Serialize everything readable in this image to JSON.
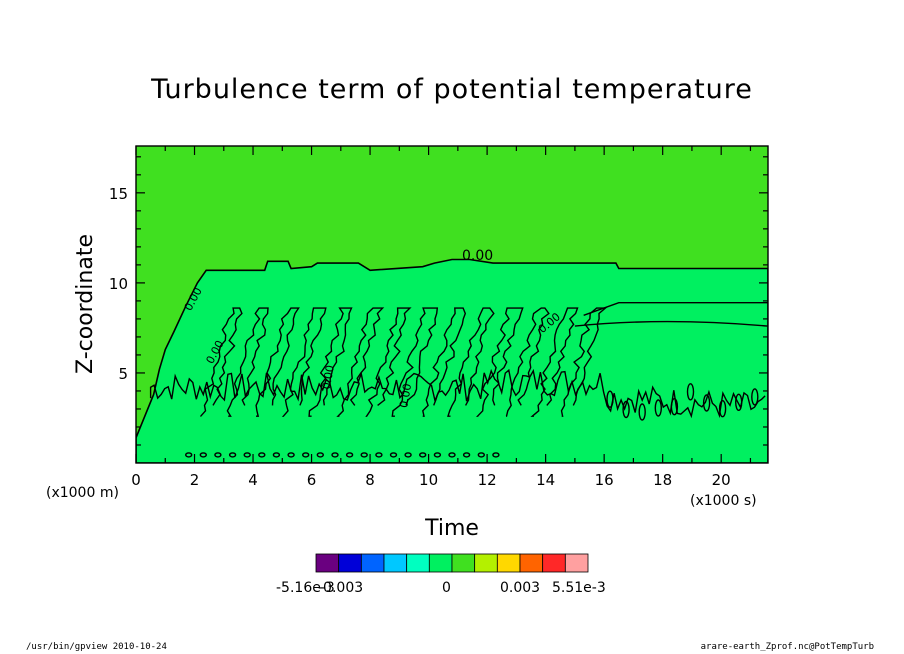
{
  "chart_data": {
    "type": "heatmap",
    "title": "Turbulence term of potential temperature",
    "xlabel": "Time",
    "ylabel": "Z-coordinate",
    "x_unit_label": "(x1000 s)",
    "y_unit_label": "(x1000 m)",
    "xlim": [
      0,
      21.6
    ],
    "ylim": [
      0,
      17.6
    ],
    "x_ticks": [
      0,
      2,
      4,
      6,
      8,
      10,
      12,
      14,
      16,
      18,
      20
    ],
    "y_ticks": [
      5,
      10,
      15
    ],
    "contour_label": "0.00",
    "contour_labels_small": [
      "0.00",
      "0.00",
      "0.00",
      "0.00",
      "0.00"
    ],
    "boundary_layer_top": [
      [
        0.0,
        1.4
      ],
      [
        0.3,
        2.6
      ],
      [
        0.6,
        3.8
      ],
      [
        0.8,
        5.2
      ],
      [
        1.0,
        6.3
      ],
      [
        1.3,
        7.3
      ],
      [
        1.7,
        8.7
      ],
      [
        2.1,
        10.0
      ],
      [
        2.4,
        10.7
      ],
      [
        4.0,
        10.7
      ],
      [
        4.4,
        10.7
      ],
      [
        4.5,
        11.2
      ],
      [
        5.2,
        11.2
      ],
      [
        5.3,
        10.8
      ],
      [
        6.0,
        10.9
      ],
      [
        6.2,
        11.1
      ],
      [
        7.6,
        11.1
      ],
      [
        8.0,
        10.7
      ],
      [
        9.8,
        10.9
      ],
      [
        10.2,
        11.1
      ],
      [
        10.8,
        11.3
      ],
      [
        11.4,
        11.3
      ],
      [
        12.2,
        11.1
      ],
      [
        14.0,
        11.1
      ],
      [
        16.4,
        11.1
      ],
      [
        16.5,
        10.8
      ],
      [
        21.6,
        10.8
      ]
    ],
    "colorbar": {
      "labels": [
        "-5.16e-3",
        "-0.003",
        "0",
        "0.003",
        "5.51e-3"
      ],
      "colors": [
        "#6a0080",
        "#0000d8",
        "#0064ff",
        "#00c8ff",
        "#00ffc0",
        "#00f060",
        "#40e020",
        "#b4f000",
        "#ffd800",
        "#ff6400",
        "#ff2828",
        "#ffa0a0"
      ]
    },
    "field_colors": {
      "background": "#40e020",
      "boundary_layer": "#00f060"
    }
  },
  "footer": {
    "left": "/usr/bin/gpview   2010-10-24",
    "right": "arare-earth_Zprof.nc@PotTempTurb"
  }
}
